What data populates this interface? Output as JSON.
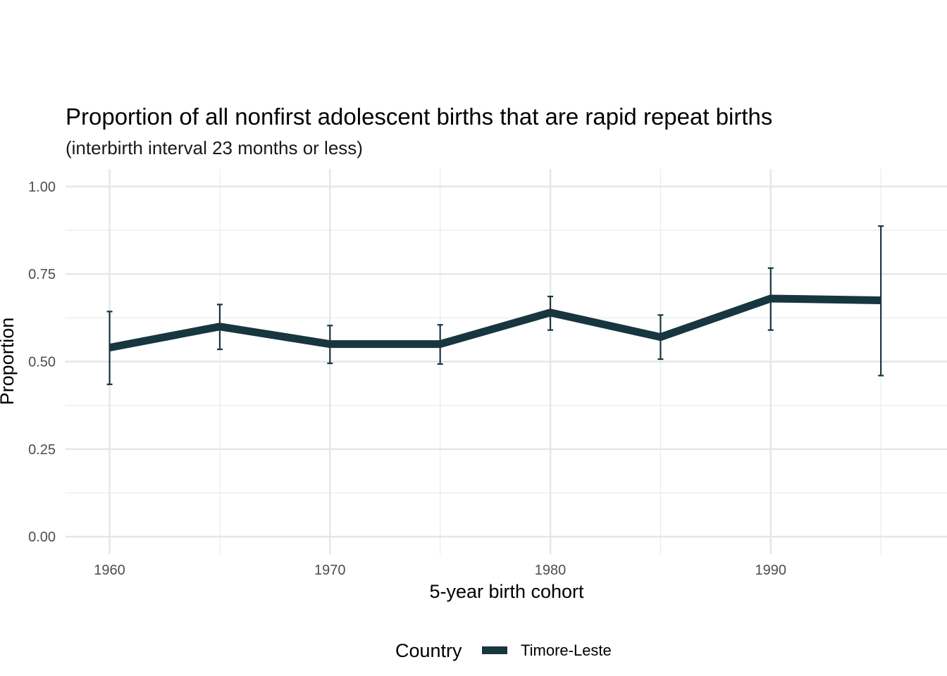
{
  "chart_data": {
    "type": "line",
    "title": "Proportion of all nonfirst adolescent births that are rapid repeat births",
    "subtitle": "(interbirth interval 23 months or less)",
    "xlabel": "5-year birth cohort",
    "ylabel": "Proportion",
    "xlim": [
      1958,
      1998
    ],
    "ylim": [
      -0.05,
      1.05
    ],
    "x_ticks": [
      1960,
      1970,
      1980,
      1990
    ],
    "x_tick_labels": [
      "1960",
      "1970",
      "1980",
      "1990"
    ],
    "x_minor_ticks": [
      1965,
      1975,
      1985,
      1995
    ],
    "y_ticks": [
      0,
      0.25,
      0.5,
      0.75,
      1.0
    ],
    "y_tick_labels": [
      "0.00",
      "0.25",
      "0.50",
      "0.75",
      "1.00"
    ],
    "y_minor_ticks": [
      0.125,
      0.375,
      0.625,
      0.875
    ],
    "grid": true,
    "legend": {
      "title": "Country",
      "position": "bottom",
      "entries": [
        "Timore-Leste"
      ]
    },
    "series": [
      {
        "name": "Timore-Leste",
        "color": "#17363f",
        "x": [
          1960,
          1965,
          1970,
          1975,
          1980,
          1985,
          1990,
          1995
        ],
        "y": [
          0.54,
          0.6,
          0.55,
          0.55,
          0.64,
          0.57,
          0.68,
          0.675
        ],
        "ymin": [
          0.435,
          0.535,
          0.495,
          0.493,
          0.59,
          0.507,
          0.59,
          0.46
        ],
        "ymax": [
          0.643,
          0.663,
          0.603,
          0.605,
          0.686,
          0.633,
          0.767,
          0.887
        ]
      }
    ]
  }
}
